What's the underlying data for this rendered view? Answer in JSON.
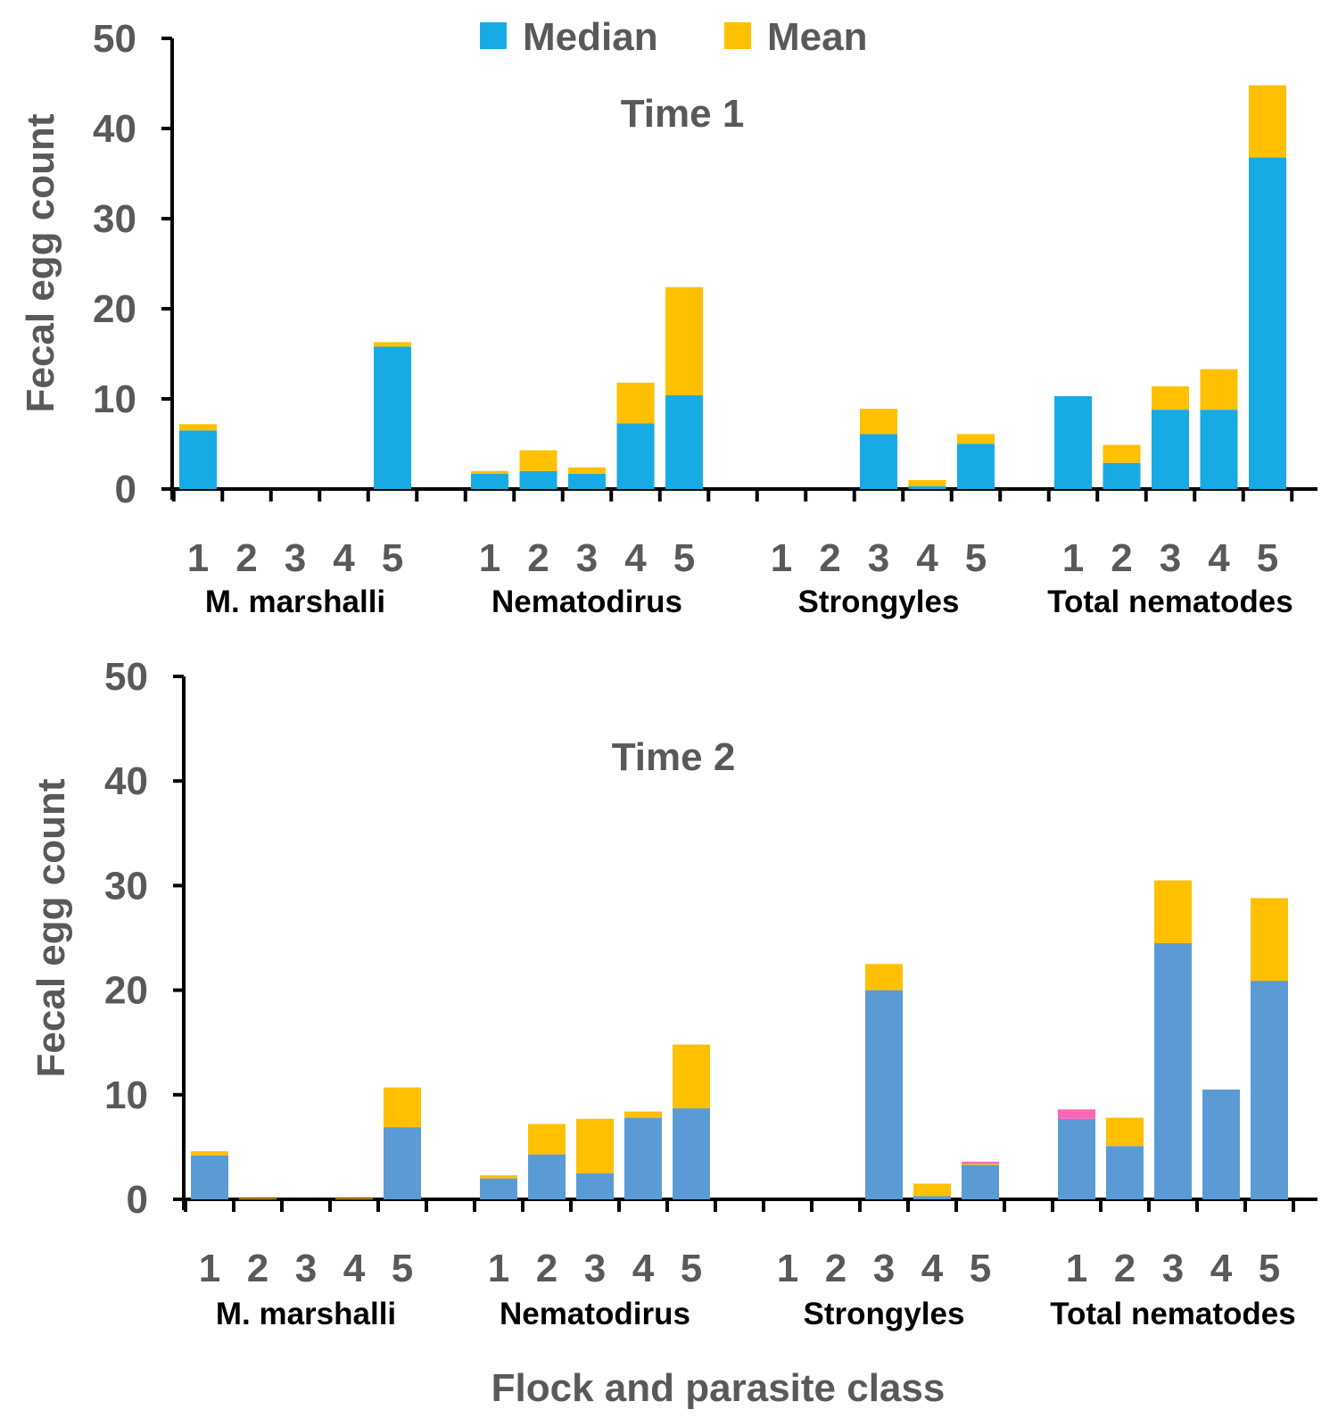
{
  "legend": [
    {
      "name": "Median",
      "color": "#18AAE4"
    },
    {
      "name": "Mean",
      "color": "#FFC000"
    }
  ],
  "xlabel": "Flock and parasite class",
  "chart_data": [
    {
      "type": "bar",
      "stacked": true,
      "title": "Time 1",
      "ylabel": "Fecal egg count",
      "ylim": [
        0,
        50
      ],
      "yticks": [
        0,
        10,
        20,
        30,
        40,
        50
      ],
      "groups": [
        "M. marshalli",
        "Nematodirus",
        "Strongyles",
        "Total nematodes"
      ],
      "categories": [
        "1",
        "2",
        "3",
        "4",
        "5"
      ],
      "median_color": "#18AAE4",
      "series": [
        {
          "name": "Median",
          "color": "#18AAE4",
          "values": [
            [
              6.5,
              0,
              0,
              0,
              15.8
            ],
            [
              1.7,
              2.0,
              1.7,
              7.3,
              10.4
            ],
            [
              0,
              0,
              6.1,
              0.3,
              5.0
            ],
            [
              10.3,
              2.9,
              8.8,
              8.8,
              36.8
            ]
          ]
        },
        {
          "name": "Mean",
          "color": "#FFC000",
          "values": [
            [
              0.7,
              0,
              0,
              0,
              0.5
            ],
            [
              0.3,
              2.3,
              0.7,
              4.5,
              12.0
            ],
            [
              0,
              0,
              2.8,
              0.7,
              1.1
            ],
            [
              0,
              2.0,
              2.6,
              4.5,
              8.0
            ]
          ]
        },
        {
          "name": "",
          "color": "#FF66B3",
          "values": [
            [
              0,
              0,
              0,
              0,
              0
            ],
            [
              0,
              0,
              0,
              0,
              0
            ],
            [
              0,
              0,
              0,
              0,
              0
            ],
            [
              0,
              0,
              0,
              0,
              0
            ]
          ]
        }
      ]
    },
    {
      "type": "bar",
      "stacked": true,
      "title": "Time 2",
      "ylabel": "Fecal egg count",
      "ylim": [
        0,
        50
      ],
      "yticks": [
        0,
        10,
        20,
        30,
        40,
        50
      ],
      "groups": [
        "M. marshalli",
        "Nematodirus",
        "Strongyles",
        "Total nematodes"
      ],
      "categories": [
        "1",
        "2",
        "3",
        "4",
        "5"
      ],
      "median_color": "#5B9BD5",
      "series": [
        {
          "name": "Median",
          "color": "#5B9BD5",
          "values": [
            [
              4.2,
              0,
              0,
              0,
              6.9
            ],
            [
              2.0,
              4.3,
              2.5,
              7.8,
              8.7
            ],
            [
              0,
              0,
              20.0,
              0.3,
              3.3
            ],
            [
              7.7,
              5.1,
              24.5,
              10.5,
              20.9
            ]
          ]
        },
        {
          "name": "Mean",
          "color": "#FFC000",
          "values": [
            [
              0.4,
              0.1,
              0,
              0.1,
              3.8
            ],
            [
              0.3,
              2.9,
              5.2,
              0.6,
              6.1
            ],
            [
              0,
              0,
              2.5,
              1.2,
              0.1
            ],
            [
              0,
              2.7,
              6.0,
              0,
              7.9
            ]
          ]
        },
        {
          "name": "",
          "color": "#FF66B3",
          "values": [
            [
              0,
              0,
              0,
              0,
              0
            ],
            [
              0,
              0,
              0,
              0,
              0
            ],
            [
              0,
              0,
              0,
              0,
              0.2
            ],
            [
              0.9,
              0,
              0,
              0,
              0
            ]
          ]
        }
      ]
    }
  ]
}
